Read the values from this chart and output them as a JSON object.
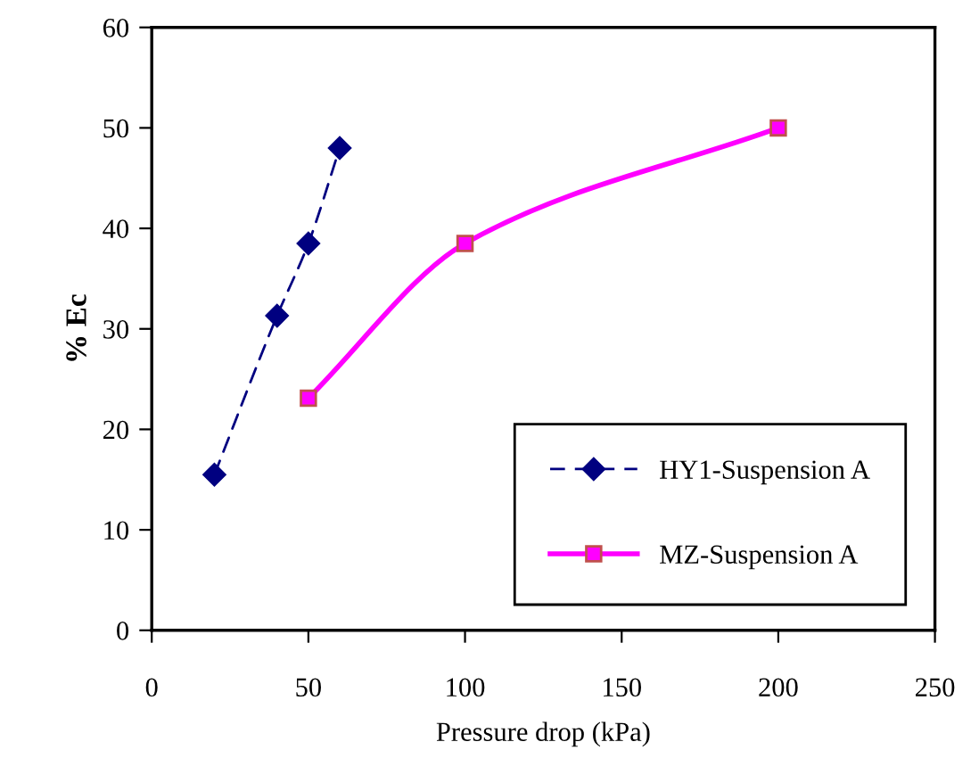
{
  "chart_data": {
    "type": "line",
    "xlabel": "Pressure drop (kPa)",
    "ylabel": "% Ec",
    "xlim": [
      0,
      250
    ],
    "xticks": [
      0,
      50,
      100,
      150,
      200,
      250
    ],
    "ylim": [
      0,
      60
    ],
    "yticks": [
      0,
      10,
      20,
      30,
      40,
      50,
      60
    ],
    "grid": false,
    "legend": "bottom right",
    "series": [
      {
        "name": "HY1-Suspension A",
        "color": "#000080",
        "marker": "diamond",
        "line_style": "dashed",
        "x": [
          20,
          40,
          50,
          60
        ],
        "values": [
          15.5,
          31.3,
          38.5,
          48
        ]
      },
      {
        "name": "MZ-Suspension A",
        "color": "#ff00ff",
        "marker": "square",
        "line_style": "solid",
        "x": [
          50,
          100,
          200
        ],
        "values": [
          23.1,
          38.5,
          50
        ]
      }
    ]
  }
}
